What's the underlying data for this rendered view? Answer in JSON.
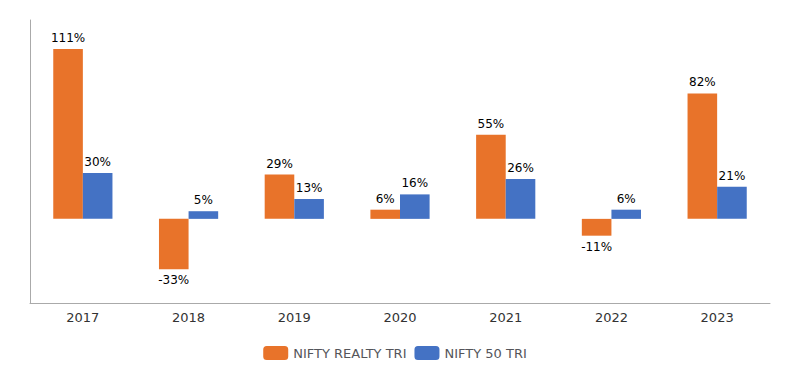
{
  "chart_data": {
    "type": "bar",
    "categories": [
      "2017",
      "2018",
      "2019",
      "2020",
      "2021",
      "2022",
      "2023"
    ],
    "series": [
      {
        "name": "NIFTY REALTY TRI",
        "color": "#E8732A",
        "values": [
          111,
          -33,
          29,
          6,
          55,
          -11,
          82
        ],
        "value_labels": [
          "111%",
          "-33%",
          "29%",
          "6%",
          "55%",
          "-11%",
          "82%"
        ]
      },
      {
        "name": "NIFTY 50 TRI",
        "color": "#4472C4",
        "values": [
          30,
          5,
          13,
          16,
          26,
          6,
          21
        ],
        "value_labels": [
          "30%",
          "5%",
          "13%",
          "16%",
          "26%",
          "6%",
          "21%"
        ]
      }
    ],
    "ylim": [
      -55,
      130
    ],
    "grid": false,
    "legend": "bottom",
    "data_labels": true,
    "tick_labels": "x"
  }
}
